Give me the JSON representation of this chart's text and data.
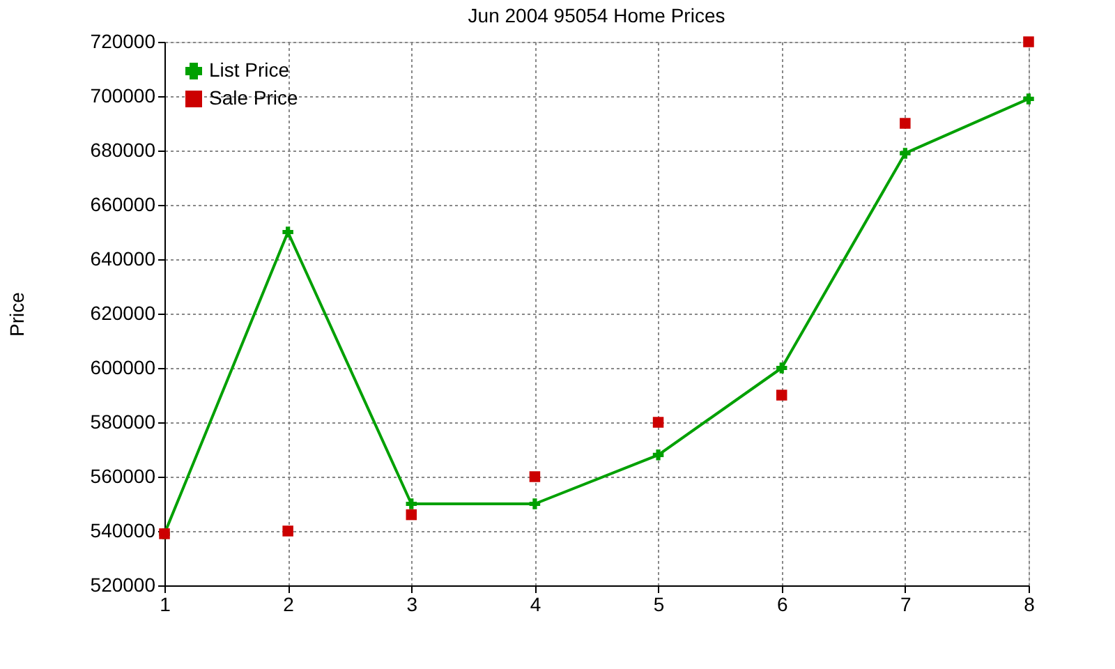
{
  "chart_data": {
    "type": "line",
    "title": "Jun 2004 95054 Home Prices",
    "ylabel": "Price",
    "x": [
      1,
      2,
      3,
      4,
      5,
      6,
      7,
      8
    ],
    "series": [
      {
        "name": "List Price",
        "marker": "cross",
        "color": "#00a000",
        "values": [
          539000,
          650000,
          550000,
          550000,
          568000,
          600000,
          679000,
          699000
        ]
      },
      {
        "name": "Sale Price",
        "type": "scatter",
        "marker": "square",
        "color": "#cc0000",
        "values": [
          539000,
          540000,
          546000,
          560000,
          580000,
          590000,
          690000,
          720000
        ]
      }
    ],
    "xlim": [
      1,
      8
    ],
    "xticks": [
      1,
      2,
      3,
      4,
      5,
      6,
      7,
      8
    ],
    "ylim": [
      520000,
      720000
    ],
    "yticks": [
      520000,
      540000,
      560000,
      580000,
      600000,
      620000,
      640000,
      660000,
      680000,
      700000,
      720000
    ],
    "grid": true,
    "legend": "top left"
  }
}
